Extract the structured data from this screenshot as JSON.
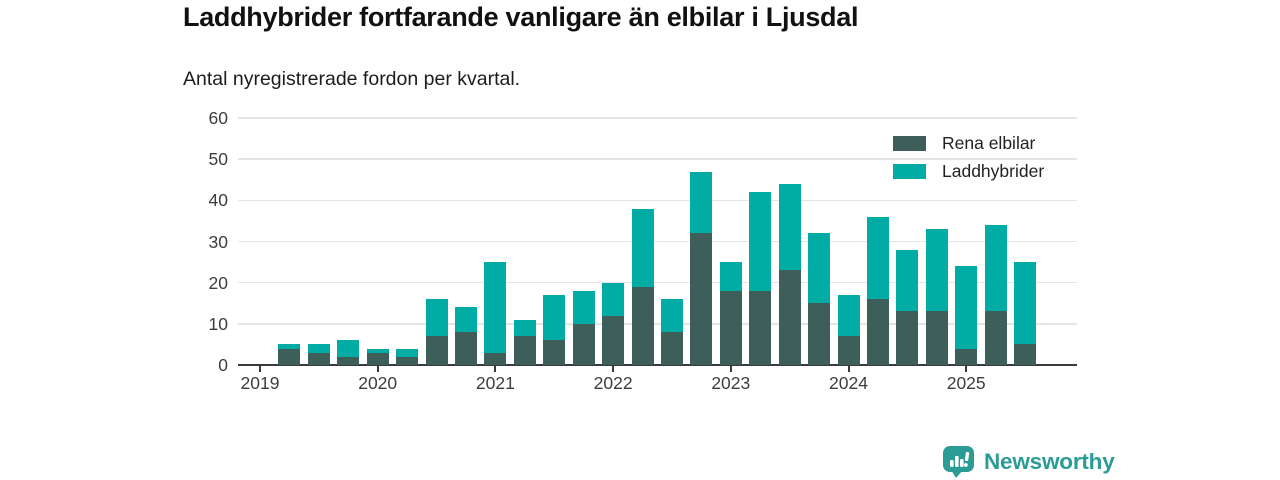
{
  "header": {
    "title": "Laddhybrider fortfarande vanligare än elbilar i Ljusdal",
    "subtitle": "Antal nyregistrerade fordon per kvartal."
  },
  "legend": [
    {
      "label": "Rena elbilar",
      "color": "#3e5e5a"
    },
    {
      "label": "Laddhybrider",
      "color": "#00aca4"
    }
  ],
  "logo": {
    "text": "Newsworthy",
    "color": "#2b9c95"
  },
  "colors": {
    "series_elbilar": "#3e5e5a",
    "series_laddhybrider": "#00aca4",
    "gridline": "#e4e4e4",
    "axis": "#3a3a3a",
    "tick_text": "#3d3d3d",
    "title_text": "#111111"
  },
  "chart_data": {
    "type": "bar",
    "stacked": true,
    "title": "Laddhybrider fortfarande vanligare än elbilar i Ljusdal",
    "subtitle": "Antal nyregistrerade fordon per kvartal.",
    "xlabel": "",
    "ylabel": "",
    "ylim": [
      0,
      60
    ],
    "y_ticks": [
      0,
      10,
      20,
      30,
      40,
      50,
      60
    ],
    "grid": "horizontal",
    "legend_position": "top-right",
    "x": [
      "2019 Q1",
      "2019 Q2",
      "2019 Q3",
      "2019 Q4",
      "2020 Q1",
      "2020 Q2",
      "2020 Q3",
      "2020 Q4",
      "2021 Q1",
      "2021 Q2",
      "2021 Q3",
      "2021 Q4",
      "2022 Q1",
      "2022 Q2",
      "2022 Q3",
      "2022 Q4",
      "2023 Q1",
      "2023 Q2",
      "2023 Q3",
      "2023 Q4",
      "2024 Q1",
      "2024 Q2",
      "2024 Q3",
      "2024 Q4",
      "2025 Q1",
      "2025 Q2",
      "2025 Q3"
    ],
    "year_labels": [
      "2019",
      "2020",
      "2021",
      "2022",
      "2023",
      "2024",
      "2025"
    ],
    "series": [
      {
        "name": "Rena elbilar",
        "color": "#3e5e5a",
        "values": [
          0,
          4,
          3,
          2,
          3,
          2,
          7,
          8,
          3,
          7,
          6,
          10,
          12,
          19,
          8,
          32,
          18,
          18,
          23,
          15,
          7,
          16,
          13,
          13,
          4,
          13,
          5
        ]
      },
      {
        "name": "Laddhybrider",
        "color": "#00aca4",
        "values": [
          0,
          1,
          2,
          4,
          1,
          2,
          9,
          6,
          22,
          4,
          11,
          8,
          8,
          19,
          8,
          15,
          7,
          24,
          21,
          17,
          10,
          20,
          15,
          20,
          20,
          21,
          20
        ]
      }
    ],
    "totals": [
      0,
      5,
      5,
      6,
      4,
      4,
      16,
      14,
      25,
      11,
      17,
      18,
      20,
      38,
      16,
      47,
      25,
      42,
      44,
      32,
      17,
      36,
      28,
      33,
      24,
      34,
      25
    ]
  }
}
